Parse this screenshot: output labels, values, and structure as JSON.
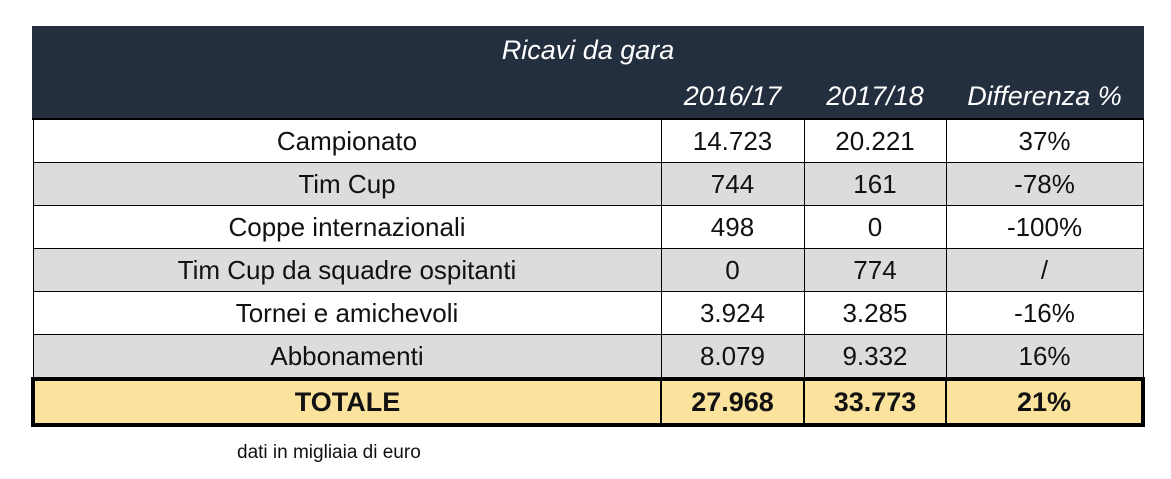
{
  "table": {
    "title": "Ricavi da gara",
    "columns": [
      "",
      "2016/17",
      "2017/18",
      "Differenza %"
    ],
    "rows": [
      {
        "label": "Campionato",
        "v1": "14.723",
        "v2": "20.221",
        "diff": "37%"
      },
      {
        "label": "Tim Cup",
        "v1": "744",
        "v2": "161",
        "diff": "-78%"
      },
      {
        "label": "Coppe internazionali",
        "v1": "498",
        "v2": "0",
        "diff": "-100%"
      },
      {
        "label": "Tim Cup da squadre ospitanti",
        "v1": "0",
        "v2": "774",
        "diff": "/"
      },
      {
        "label": "Tornei e amichevoli",
        "v1": "3.924",
        "v2": "3.285",
        "diff": "-16%"
      },
      {
        "label": "Abbonamenti",
        "v1": "8.079",
        "v2": "9.332",
        "diff": "16%"
      }
    ],
    "total": {
      "label": "TOTALE",
      "v1": "27.968",
      "v2": "33.773",
      "diff": "21%"
    }
  },
  "note": "dati in migliaia di euro",
  "colors": {
    "header_bg": "#232f3e",
    "alt_row_bg": "#dcdcdc",
    "total_bg": "#fbe39e"
  }
}
